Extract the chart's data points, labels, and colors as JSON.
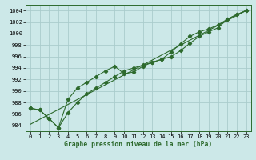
{
  "xlabel": "Graphe pression niveau de la mer (hPa)",
  "x": [
    0,
    1,
    2,
    3,
    4,
    5,
    6,
    7,
    8,
    9,
    10,
    11,
    12,
    13,
    14,
    15,
    16,
    17,
    18,
    19,
    20,
    21,
    22,
    23
  ],
  "line1": [
    987.0,
    986.7,
    985.2,
    983.6,
    988.5,
    990.5,
    991.5,
    992.5,
    993.5,
    994.3,
    993.0,
    993.3,
    994.3,
    995.0,
    995.5,
    996.0,
    997.0,
    998.3,
    999.5,
    1000.3,
    1001.0,
    1002.5,
    1003.3,
    1004.0
  ],
  "line2": [
    987.0,
    986.7,
    985.2,
    983.6,
    986.2,
    988.0,
    989.5,
    990.5,
    991.5,
    992.5,
    993.5,
    994.0,
    994.5,
    995.0,
    995.5,
    996.8,
    998.2,
    999.5,
    1000.3,
    1000.8,
    1001.5,
    1002.5,
    1003.3,
    1004.0
  ],
  "line3_x": [
    0,
    23
  ],
  "line3_y": [
    984.2,
    1004.0
  ],
  "ylim": [
    983.0,
    1005.0
  ],
  "yticks": [
    984,
    986,
    988,
    990,
    992,
    994,
    996,
    998,
    1000,
    1002,
    1004
  ],
  "xticks": [
    0,
    1,
    2,
    3,
    4,
    5,
    6,
    7,
    8,
    9,
    10,
    11,
    12,
    13,
    14,
    15,
    16,
    17,
    18,
    19,
    20,
    21,
    22,
    23
  ],
  "line_color": "#2d6a2d",
  "bg_color": "#cce8e8",
  "grid_color": "#aacccc",
  "marker": "D",
  "marker_size": 2.2,
  "line_width": 0.8,
  "tick_fontsize": 5.0,
  "xlabel_fontsize": 5.8
}
